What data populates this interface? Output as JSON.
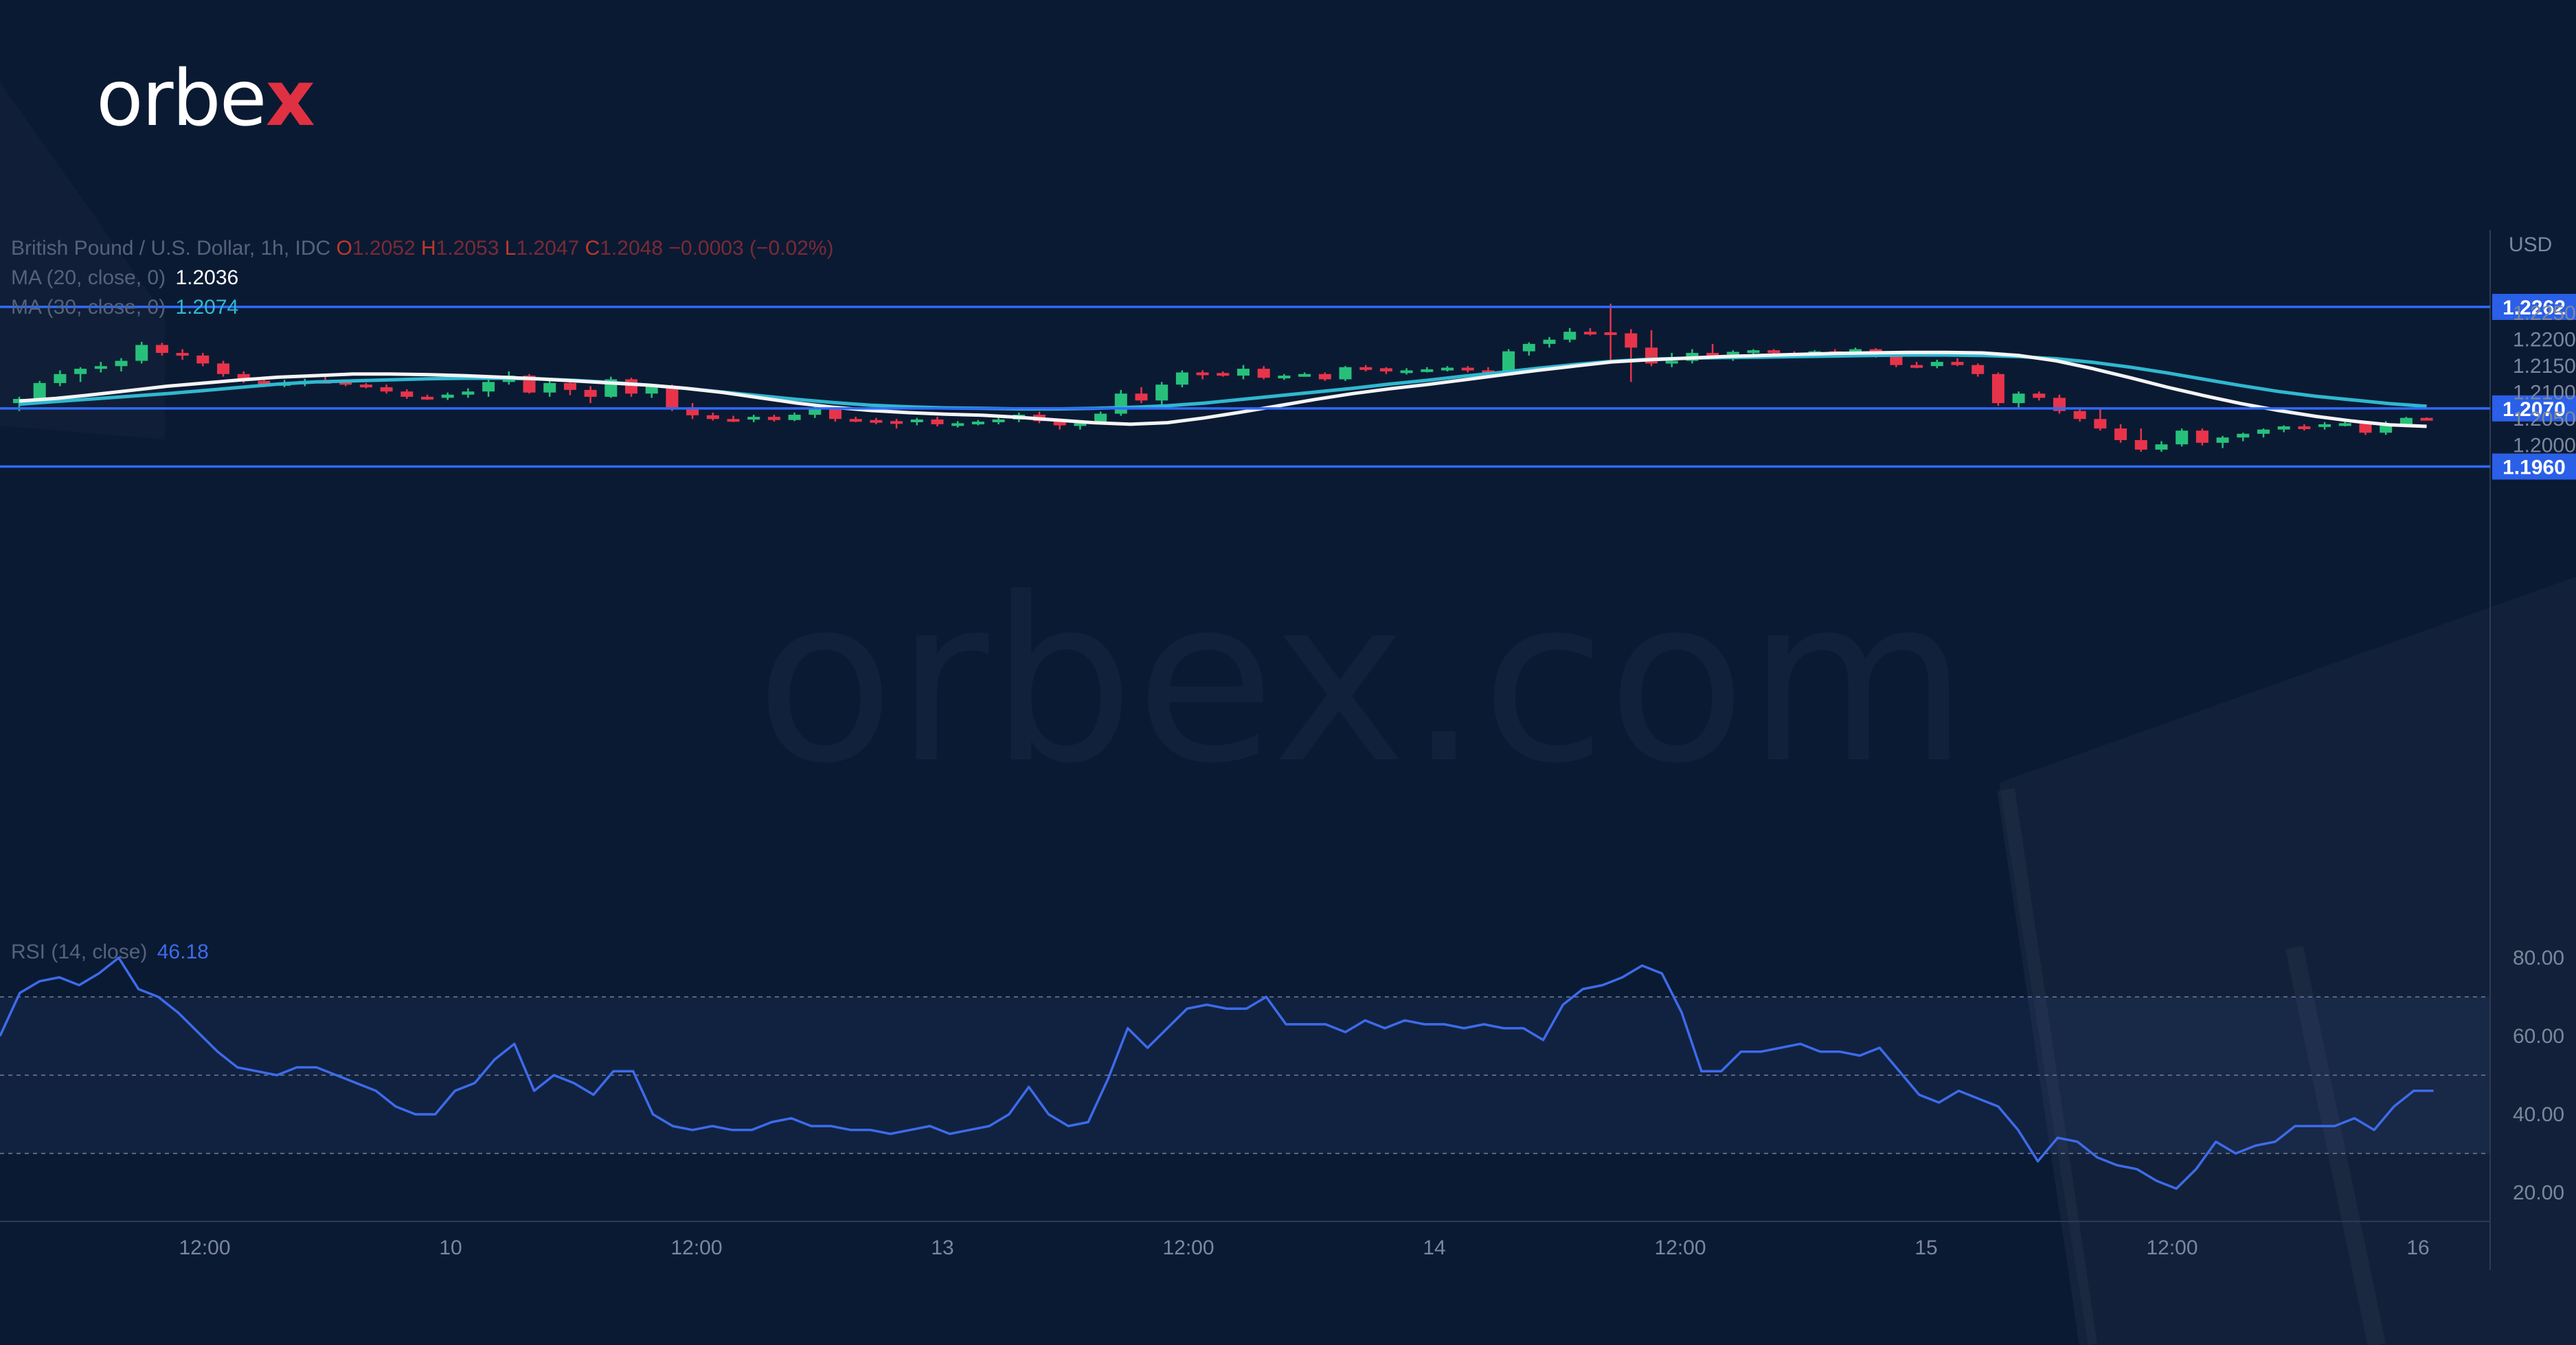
{
  "brand": {
    "logo_main": "orbe",
    "logo_x": "x",
    "watermark": "orbex.com"
  },
  "legend": {
    "symbol": "British Pound / U.S. Dollar, 1h, IDC",
    "o_label": "O",
    "open": "1.2052",
    "h_label": "H",
    "high": "1.2053",
    "l_label": "L",
    "low": "1.2047",
    "c_label": "C",
    "close": "1.2048",
    "change": "−0.0003 (−0.02%)",
    "ma20_label": "MA (20, close, 0)",
    "ma20_value": "1.2036",
    "ma30_label": "MA (30, close, 0)",
    "ma30_value": "1.2074",
    "rsi_label": "RSI (14, close)",
    "rsi_value": "46.18"
  },
  "colors": {
    "background": "#0b1a33",
    "up": "#27c07a",
    "down": "#e8344a",
    "ma20": "#f4f4f4",
    "ma30": "#2fb8cf",
    "rsi": "#3d6bea",
    "level": "#2f6bff"
  },
  "chart_data": [
    {
      "type": "candlestick",
      "title": "British Pound / U.S. Dollar, 1h, IDC",
      "currency_label": "USD",
      "ylim": [
        1.1945,
        1.2285
      ],
      "y_ticks": [
        "1.2250",
        "1.2200",
        "1.2150",
        "1.2100",
        "1.2050",
        "1.2000"
      ],
      "x_ticks": [
        "12:00",
        "10",
        "12:00",
        "13",
        "12:00",
        "14",
        "12:00",
        "15",
        "12:00",
        "16"
      ],
      "levels": [
        {
          "value": 1.2262,
          "label": "1.2262"
        },
        {
          "value": 1.207,
          "label": "1.2070"
        },
        {
          "value": 1.196,
          "label": "1.1960"
        }
      ],
      "candles": [
        [
          1.208,
          1.2092,
          1.2065,
          1.2088
        ],
        [
          1.2088,
          1.2122,
          1.2082,
          1.2118
        ],
        [
          1.2118,
          1.2142,
          1.2112,
          1.2135
        ],
        [
          1.2135,
          1.2148,
          1.212,
          1.2145
        ],
        [
          1.2145,
          1.2158,
          1.2138,
          1.215
        ],
        [
          1.215,
          1.2165,
          1.214,
          1.216
        ],
        [
          1.216,
          1.2196,
          1.2155,
          1.219
        ],
        [
          1.219,
          1.2194,
          1.217,
          1.2175
        ],
        [
          1.2175,
          1.2182,
          1.2162,
          1.217
        ],
        [
          1.217,
          1.2175,
          1.215,
          1.2155
        ],
        [
          1.2155,
          1.216,
          1.213,
          1.2135
        ],
        [
          1.2135,
          1.214,
          1.2118,
          1.2122
        ],
        [
          1.2122,
          1.213,
          1.211,
          1.2115
        ],
        [
          1.2115,
          1.2124,
          1.211,
          1.2118
        ],
        [
          1.2118,
          1.2126,
          1.2112,
          1.2122
        ],
        [
          1.2122,
          1.213,
          1.2118,
          1.212
        ],
        [
          1.212,
          1.2124,
          1.2112,
          1.2115
        ],
        [
          1.2115,
          1.2118,
          1.2108,
          1.211
        ],
        [
          1.211,
          1.2115,
          1.2098,
          1.2102
        ],
        [
          1.2102,
          1.2106,
          1.2088,
          1.2092
        ],
        [
          1.2092,
          1.2096,
          1.2086,
          1.209
        ],
        [
          1.209,
          1.21,
          1.2086,
          1.2096
        ],
        [
          1.2096,
          1.2108,
          1.209,
          1.2102
        ],
        [
          1.2102,
          1.2125,
          1.2092,
          1.212
        ],
        [
          1.212,
          1.214,
          1.2115,
          1.2132
        ],
        [
          1.2132,
          1.2135,
          1.2098,
          1.21
        ],
        [
          1.21,
          1.2122,
          1.2092,
          1.2118
        ],
        [
          1.2118,
          1.2125,
          1.2095,
          1.2105
        ],
        [
          1.2105,
          1.2112,
          1.208,
          1.2092
        ],
        [
          1.2092,
          1.213,
          1.209,
          1.2125
        ],
        [
          1.2125,
          1.2128,
          1.2092,
          1.2098
        ],
        [
          1.2098,
          1.2115,
          1.209,
          1.2112
        ],
        [
          1.2112,
          1.2115,
          1.2065,
          1.2072
        ],
        [
          1.2072,
          1.208,
          1.205,
          1.2057
        ],
        [
          1.2057,
          1.2062,
          1.2047,
          1.205
        ],
        [
          1.205,
          1.2056,
          1.2044,
          1.2049
        ],
        [
          1.2049,
          1.2058,
          1.2044,
          1.2054
        ],
        [
          1.2054,
          1.2058,
          1.2045,
          1.2048
        ],
        [
          1.2048,
          1.2062,
          1.2046,
          1.2058
        ],
        [
          1.2058,
          1.2075,
          1.2052,
          1.2068
        ],
        [
          1.2068,
          1.2072,
          1.2045,
          1.205
        ],
        [
          1.205,
          1.2054,
          1.2044,
          1.2048
        ],
        [
          1.2048,
          1.2052,
          1.204,
          1.2046
        ],
        [
          1.2046,
          1.205,
          1.2032,
          1.2044
        ],
        [
          1.2044,
          1.2052,
          1.2038,
          1.2049
        ],
        [
          1.2049,
          1.2054,
          1.2036,
          1.204
        ],
        [
          1.204,
          1.2046,
          1.2034,
          1.2042
        ],
        [
          1.2042,
          1.2048,
          1.2038,
          1.2045
        ],
        [
          1.2045,
          1.2052,
          1.204,
          1.2049
        ],
        [
          1.2049,
          1.2062,
          1.2044,
          1.2058
        ],
        [
          1.2058,
          1.2064,
          1.2042,
          1.2046
        ],
        [
          1.2046,
          1.205,
          1.203,
          1.2038
        ],
        [
          1.2038,
          1.2046,
          1.203,
          1.2042
        ],
        [
          1.2042,
          1.2064,
          1.204,
          1.206
        ],
        [
          1.206,
          1.2105,
          1.2056,
          1.2098
        ],
        [
          1.2098,
          1.211,
          1.208,
          1.2085
        ],
        [
          1.2085,
          1.212,
          1.2075,
          1.2115
        ],
        [
          1.2115,
          1.2142,
          1.211,
          1.2138
        ],
        [
          1.2138,
          1.2142,
          1.2125,
          1.2137
        ],
        [
          1.2137,
          1.214,
          1.213,
          1.2132
        ],
        [
          1.2132,
          1.2152,
          1.2125,
          1.2145
        ],
        [
          1.2145,
          1.215,
          1.2125,
          1.2128
        ],
        [
          1.2128,
          1.2135,
          1.2124,
          1.2132
        ],
        [
          1.2132,
          1.2138,
          1.213,
          1.2135
        ],
        [
          1.2135,
          1.2138,
          1.2122,
          1.2125
        ],
        [
          1.2125,
          1.215,
          1.2122,
          1.2148
        ],
        [
          1.2148,
          1.2152,
          1.214,
          1.2146
        ],
        [
          1.2146,
          1.2148,
          1.2135,
          1.214
        ],
        [
          1.214,
          1.2146,
          1.2134,
          1.2142
        ],
        [
          1.2142,
          1.2148,
          1.2138,
          1.2144
        ],
        [
          1.2144,
          1.215,
          1.214,
          1.2147
        ],
        [
          1.2147,
          1.215,
          1.2138,
          1.2142
        ],
        [
          1.2142,
          1.2148,
          1.2135,
          1.2138
        ],
        [
          1.2138,
          1.2182,
          1.2135,
          1.2178
        ],
        [
          1.2178,
          1.2195,
          1.217,
          1.2192
        ],
        [
          1.2192,
          1.2205,
          1.2185,
          1.22
        ],
        [
          1.22,
          1.2222,
          1.2195,
          1.2215
        ],
        [
          1.2215,
          1.2222,
          1.2208,
          1.2214
        ],
        [
          1.2214,
          1.2268,
          1.2155,
          1.2212
        ],
        [
          1.2212,
          1.222,
          1.212,
          1.2185
        ],
        [
          1.2185,
          1.2218,
          1.215,
          1.2155
        ],
        [
          1.2155,
          1.2175,
          1.2148,
          1.216
        ],
        [
          1.216,
          1.2182,
          1.2155,
          1.2175
        ],
        [
          1.2175,
          1.2192,
          1.2165,
          1.2172
        ],
        [
          1.2172,
          1.218,
          1.216,
          1.2177
        ],
        [
          1.2177,
          1.2182,
          1.217,
          1.218
        ],
        [
          1.218,
          1.2182,
          1.217,
          1.2175
        ],
        [
          1.2175,
          1.2178,
          1.2165,
          1.2172
        ],
        [
          1.2172,
          1.218,
          1.2168,
          1.2178
        ],
        [
          1.2178,
          1.2182,
          1.217,
          1.2175
        ],
        [
          1.2175,
          1.2185,
          1.2172,
          1.2182
        ],
        [
          1.2182,
          1.2184,
          1.2166,
          1.2168
        ],
        [
          1.2168,
          1.2172,
          1.2148,
          1.2152
        ],
        [
          1.2152,
          1.2158,
          1.2146,
          1.215
        ],
        [
          1.215,
          1.2162,
          1.2146,
          1.2158
        ],
        [
          1.2158,
          1.2165,
          1.215,
          1.2152
        ],
        [
          1.2152,
          1.2155,
          1.213,
          1.2135
        ],
        [
          1.2135,
          1.2138,
          1.2075,
          1.208
        ],
        [
          1.208,
          1.2102,
          1.207,
          1.2098
        ],
        [
          1.2098,
          1.2102,
          1.2085,
          1.209
        ],
        [
          1.209,
          1.2096,
          1.206,
          1.2065
        ],
        [
          1.2065,
          1.207,
          1.2045,
          1.205
        ],
        [
          1.205,
          1.2068,
          1.2028,
          1.2032
        ],
        [
          1.2032,
          1.204,
          1.2005,
          1.201
        ],
        [
          1.201,
          1.2032,
          1.1988,
          1.1992
        ],
        [
          1.1992,
          1.2008,
          1.1988,
          1.2002
        ],
        [
          1.2002,
          1.2032,
          1.1998,
          1.2028
        ],
        [
          1.2028,
          1.2032,
          1.2,
          1.2005
        ],
        [
          1.2005,
          1.2018,
          1.1995,
          1.2015
        ],
        [
          1.2015,
          1.2024,
          1.2008,
          1.2022
        ],
        [
          1.2022,
          1.2032,
          1.2015,
          1.203
        ],
        [
          1.203,
          1.2038,
          1.2025,
          1.2036
        ],
        [
          1.2036,
          1.204,
          1.2028,
          1.2035
        ],
        [
          1.2035,
          1.2044,
          1.203,
          1.204
        ],
        [
          1.204,
          1.2046,
          1.2036,
          1.2042
        ],
        [
          1.2042,
          1.2046,
          1.202,
          1.2024
        ],
        [
          1.2024,
          1.2046,
          1.202,
          1.204
        ],
        [
          1.204,
          1.2054,
          1.2036,
          1.2052
        ],
        [
          1.2052,
          1.2053,
          1.2047,
          1.2048
        ]
      ],
      "ma20": [
        1.2084,
        1.2089,
        1.2096,
        1.2104,
        1.2112,
        1.2118,
        1.2124,
        1.2129,
        1.2132,
        1.2135,
        1.2135,
        1.2134,
        1.2132,
        1.2129,
        1.2126,
        1.2122,
        1.2118,
        1.2114,
        1.2108,
        1.21,
        1.209,
        1.208,
        1.2072,
        1.2066,
        1.2062,
        1.2059,
        1.2057,
        1.2053,
        1.2048,
        1.2043,
        1.204,
        1.2043,
        1.2052,
        1.2063,
        1.2075,
        1.2087,
        1.2098,
        1.2107,
        1.2115,
        1.2124,
        1.2133,
        1.2142,
        1.215,
        1.2158,
        1.2162,
        1.2165,
        1.2168,
        1.217,
        1.2172,
        1.2174,
        1.2175,
        1.2176,
        1.2176,
        1.2175,
        1.217,
        1.216,
        1.2145,
        1.2128,
        1.211,
        1.2094,
        1.2079,
        1.2066,
        1.2055,
        1.2046,
        1.2039,
        1.2036
      ],
      "ma30": [
        1.2078,
        1.2083,
        1.2088,
        1.2093,
        1.2098,
        1.2104,
        1.211,
        1.2116,
        1.212,
        1.2122,
        1.2124,
        1.2126,
        1.2127,
        1.2127,
        1.2126,
        1.2123,
        1.2119,
        1.2114,
        1.2108,
        1.2101,
        1.2094,
        1.2087,
        1.2081,
        1.2076,
        1.2073,
        1.2071,
        1.207,
        1.2069,
        1.2069,
        1.207,
        1.2072,
        1.2075,
        1.208,
        1.2087,
        1.2094,
        1.2101,
        1.2108,
        1.2116,
        1.2123,
        1.2131,
        1.2138,
        1.2146,
        1.2153,
        1.2159,
        1.2163,
        1.2165,
        1.2166,
        1.2167,
        1.2168,
        1.2169,
        1.217,
        1.2171,
        1.2171,
        1.217,
        1.2168,
        1.2164,
        1.2157,
        1.2148,
        1.2137,
        1.2125,
        1.2113,
        1.2102,
        1.2093,
        1.2086,
        1.2079,
        1.2074
      ]
    },
    {
      "type": "line",
      "title": "RSI (14, close)",
      "ylim": [
        10,
        88
      ],
      "y_ticks": [
        "80.00",
        "60.00",
        "40.00",
        "20.00"
      ],
      "band": [
        30,
        70
      ],
      "midline": 50,
      "values": [
        60,
        71,
        74,
        75,
        73,
        76,
        80,
        72,
        70,
        66,
        61,
        56,
        52,
        51,
        50,
        52,
        52,
        50,
        48,
        46,
        42,
        40,
        40,
        46,
        48,
        54,
        58,
        46,
        50,
        48,
        45,
        51,
        51,
        40,
        37,
        36,
        37,
        36,
        36,
        38,
        39,
        37,
        37,
        36,
        36,
        35,
        36,
        37,
        35,
        36,
        37,
        40,
        47,
        40,
        37,
        38,
        49,
        62,
        57,
        62,
        67,
        68,
        67,
        67,
        70,
        63,
        63,
        63,
        61,
        64,
        62,
        64,
        63,
        63,
        62,
        63,
        62,
        62,
        59,
        68,
        72,
        73,
        75,
        78,
        76,
        66,
        51,
        51,
        56,
        56,
        57,
        58,
        56,
        56,
        55,
        57,
        51,
        45,
        43,
        46,
        44,
        42,
        36,
        28,
        34,
        33,
        29,
        27,
        26,
        23,
        21,
        26,
        33,
        30,
        32,
        33,
        37,
        37,
        37,
        39,
        36,
        42,
        46,
        46
      ]
    }
  ]
}
